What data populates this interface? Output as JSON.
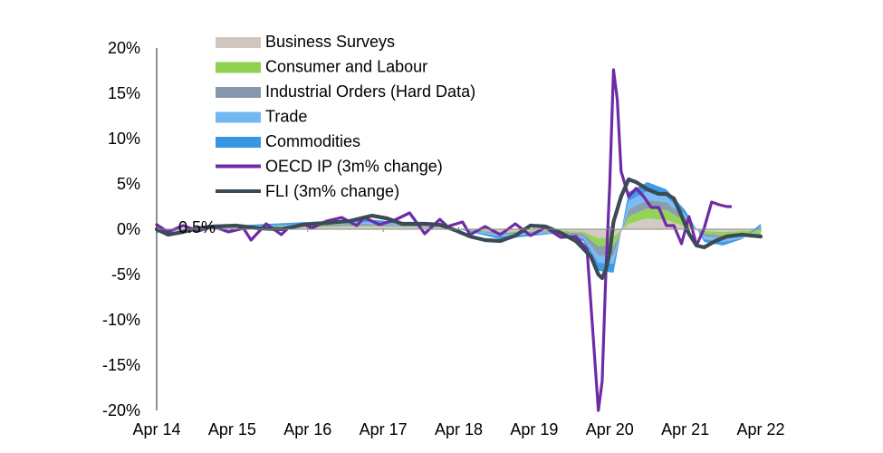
{
  "chart_data": {
    "type": "area",
    "title": "",
    "xlabel": "",
    "ylabel": "",
    "ylim": [
      -20,
      20
    ],
    "xlim": [
      2014.25,
      2022.25
    ],
    "y_ticks": [
      "20%",
      "15%",
      "10%",
      "5%",
      "0%",
      "-5%",
      "-10%",
      "-15%",
      "-20%"
    ],
    "x_ticks": [
      "Apr 14",
      "Apr 15",
      "Apr 16",
      "Apr 17",
      "Apr 18",
      "Apr 19",
      "Apr 20",
      "Apr 21",
      "Apr 22"
    ],
    "annotation": "0.5%",
    "legend_position": "top-left",
    "colors": {
      "business": "#d0c7c0",
      "consumer": "#8fd04f",
      "industrial": "#8599ac",
      "trade": "#74b8f1",
      "commodities": "#3596e4",
      "oecd": "#6f2aa6",
      "fli": "#3b4a55"
    },
    "stacked_series": [
      {
        "name": "Business Surveys",
        "x": [
          2014.25,
          2015,
          2016,
          2017,
          2018,
          2018.8,
          2019.5,
          2019.9,
          2020.1,
          2020.3,
          2020.5,
          2020.75,
          2021,
          2021.25,
          2021.5,
          2021.75,
          2022,
          2022.25
        ],
        "values": [
          -0.1,
          0.1,
          0.2,
          0.3,
          0.2,
          -0.3,
          -0.1,
          -0.3,
          -1.0,
          -0.8,
          0.6,
          1.2,
          1.0,
          0.3,
          -0.2,
          -0.3,
          -0.2,
          -0.1
        ]
      },
      {
        "name": "Consumer and Labour",
        "x": [
          2014.25,
          2015,
          2016,
          2017,
          2018,
          2018.8,
          2019.5,
          2019.9,
          2020.1,
          2020.3,
          2020.5,
          2020.75,
          2021,
          2021.25,
          2021.5,
          2021.75,
          2022,
          2022.25
        ],
        "values": [
          0.0,
          0.0,
          0.1,
          0.1,
          0.0,
          -0.1,
          -0.1,
          -0.2,
          -0.9,
          -1.1,
          0.8,
          1.1,
          1.1,
          0.6,
          -0.3,
          -0.4,
          -0.4,
          -0.4
        ]
      },
      {
        "name": "Industrial Orders (Hard Data)",
        "x": [
          2014.25,
          2015,
          2016,
          2017,
          2018,
          2018.8,
          2019.5,
          2019.9,
          2020.1,
          2020.3,
          2020.5,
          2020.75,
          2021,
          2021.25,
          2021.5,
          2021.75,
          2022,
          2022.25
        ],
        "values": [
          -0.1,
          0.0,
          0.1,
          0.2,
          0.1,
          -0.2,
          -0.1,
          -0.3,
          -1.0,
          -1.0,
          0.8,
          0.9,
          0.9,
          0.4,
          -0.3,
          -0.3,
          -0.2,
          -0.1
        ]
      },
      {
        "name": "Trade",
        "x": [
          2014.25,
          2015,
          2016,
          2017,
          2018,
          2018.8,
          2019.5,
          2019.9,
          2020.1,
          2020.3,
          2020.5,
          2020.75,
          2021,
          2021.25,
          2021.5,
          2021.75,
          2022,
          2022.25
        ],
        "values": [
          -0.1,
          0.1,
          0.1,
          0.2,
          0.1,
          -0.2,
          -0.1,
          -0.2,
          -0.8,
          -0.9,
          0.9,
          1.0,
          0.6,
          0.3,
          -0.3,
          -0.4,
          -0.2,
          0.3
        ]
      },
      {
        "name": "Commodities",
        "x": [
          2014.25,
          2015,
          2016,
          2017,
          2018,
          2018.8,
          2019.5,
          2019.9,
          2020.1,
          2020.3,
          2020.5,
          2020.75,
          2021,
          2021.25,
          2021.5,
          2021.75,
          2022,
          2022.25
        ],
        "values": [
          -0.1,
          0.1,
          0.2,
          0.3,
          0.1,
          -0.3,
          -0.1,
          -0.3,
          -0.9,
          -1.0,
          1.0,
          1.0,
          0.8,
          0.5,
          -0.3,
          -0.4,
          -0.1,
          0.3
        ]
      }
    ],
    "line_series": [
      {
        "name": "OECD IP (3m% change)",
        "x": [
          2014.25,
          2014.4,
          2014.6,
          2014.8,
          2015,
          2015.2,
          2015.4,
          2015.5,
          2015.7,
          2015.9,
          2016,
          2016.2,
          2016.3,
          2016.5,
          2016.7,
          2016.9,
          2017,
          2017.2,
          2017.4,
          2017.6,
          2017.8,
          2018,
          2018.1,
          2018.3,
          2018.4,
          2018.6,
          2018.8,
          2019,
          2019.2,
          2019.4,
          2019.6,
          2019.8,
          2019.95,
          2020.1,
          2020.15,
          2020.2,
          2020.25,
          2020.3,
          2020.35,
          2020.4,
          2020.5,
          2020.6,
          2020.7,
          2020.8,
          2020.9,
          2021,
          2021.1,
          2021.2,
          2021.3,
          2021.4,
          2021.5,
          2021.6,
          2021.7,
          2021.8,
          2021.85
        ],
        "values": [
          0.5,
          -0.3,
          0.4,
          -0.2,
          0.3,
          -0.3,
          0.1,
          -1.2,
          0.6,
          -0.6,
          0.2,
          0.6,
          0.1,
          0.9,
          1.3,
          0.4,
          1.3,
          0.5,
          1.0,
          1.8,
          -0.5,
          1.1,
          0.3,
          0.8,
          -0.6,
          0.3,
          -0.6,
          0.6,
          -0.7,
          0.2,
          -0.9,
          -0.8,
          -2.2,
          -20.0,
          -16.8,
          -4.5,
          5.0,
          17.6,
          14.3,
          6.4,
          3.6,
          4.5,
          3.6,
          2.4,
          2.4,
          0.4,
          0.4,
          -1.6,
          1.4,
          -1.8,
          0.1,
          3.0,
          2.7,
          2.5,
          2.5
        ]
      },
      {
        "name": "FLI (3m% change)",
        "x": [
          2014.25,
          2014.4,
          2014.6,
          2014.8,
          2015,
          2015.3,
          2015.6,
          2015.9,
          2016.2,
          2016.5,
          2016.8,
          2017.1,
          2017.3,
          2017.5,
          2017.8,
          2018.0,
          2018.2,
          2018.4,
          2018.6,
          2018.8,
          2019.0,
          2019.2,
          2019.4,
          2019.6,
          2019.8,
          2020.0,
          2020.1,
          2020.15,
          2020.2,
          2020.25,
          2020.3,
          2020.4,
          2020.5,
          2020.6,
          2020.75,
          2020.9,
          2021.0,
          2021.1,
          2021.2,
          2021.3,
          2021.4,
          2021.5,
          2021.65,
          2021.8,
          2022.0,
          2022.25
        ],
        "values": [
          0.0,
          -0.6,
          -0.3,
          0.1,
          0.3,
          0.4,
          0.1,
          0.0,
          0.5,
          0.7,
          0.9,
          1.5,
          1.2,
          0.6,
          0.6,
          0.5,
          -0.1,
          -0.8,
          -1.2,
          -1.3,
          -0.7,
          0.4,
          0.3,
          -0.4,
          -1.3,
          -3.0,
          -5.0,
          -5.4,
          -4.4,
          -2.5,
          0.8,
          3.6,
          5.5,
          5.2,
          4.4,
          3.9,
          3.9,
          3.4,
          1.5,
          -0.5,
          -1.8,
          -2.0,
          -1.3,
          -0.8,
          -0.6,
          -0.8
        ]
      }
    ]
  }
}
